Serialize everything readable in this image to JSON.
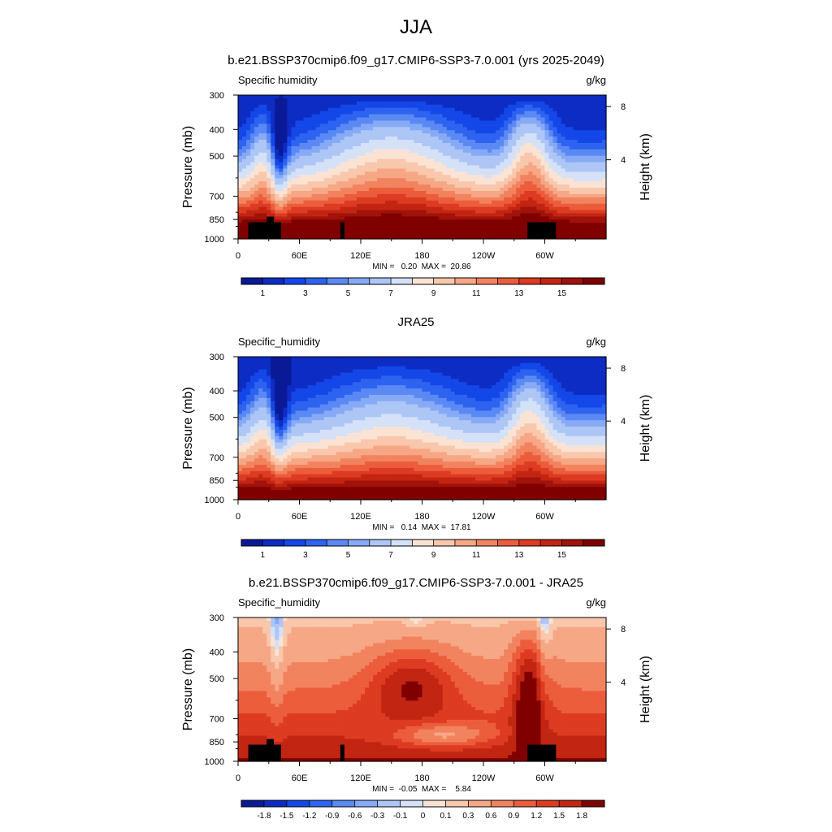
{
  "figure": {
    "title": "JJA"
  },
  "chart_data": [
    {
      "type": "heatmap",
      "title": "b.e21.BSSP370cmip6.f09_g17.CMIP6-SSP3-7.0.001 (yrs 2025-2049)",
      "variable": "Specific humidity",
      "units": "g/kg",
      "ylabel": "Pressure (mb)",
      "y2label": "Height (km)",
      "xticks": [
        "0",
        "60E",
        "120E",
        "180",
        "120W",
        "60W"
      ],
      "yticks": [
        300,
        400,
        500,
        700,
        850,
        1000
      ],
      "y2ticks": [
        8,
        4
      ],
      "ylim": [
        1000,
        300
      ],
      "xlim": [
        0,
        360
      ],
      "stats": "MIN =   0.20  MAX =  20.86",
      "colorbar_labels": [
        "1",
        "3",
        "5",
        "7",
        "9",
        "11",
        "13",
        "15"
      ],
      "colorbar_levels": [
        0.5,
        1,
        1.5,
        2,
        2.5,
        3,
        4,
        5,
        6,
        7,
        8,
        9,
        10,
        11,
        12,
        13,
        14,
        15,
        16
      ],
      "colormap": "BlueWhiteOrangeRed",
      "terrain_mask": true,
      "palette": [
        "#0a1a96",
        "#0d2cc4",
        "#1447e8",
        "#2e63f0",
        "#5b89f4",
        "#86aaf6",
        "#adc6f6",
        "#d4e1f7",
        "#fbe3d4",
        "#f9c7ac",
        "#f6a785",
        "#f2835f",
        "#ec5d3c",
        "#dd3b22",
        "#c22512",
        "#a0120a",
        "#800000"
      ]
    },
    {
      "type": "heatmap",
      "title": "JRA25",
      "variable": "Specific_humidity",
      "units": "g/kg",
      "ylabel": "Pressure (mb)",
      "y2label": "Height (km)",
      "xticks": [
        "0",
        "60E",
        "120E",
        "180",
        "120W",
        "60W"
      ],
      "yticks": [
        300,
        400,
        500,
        700,
        850,
        1000
      ],
      "y2ticks": [
        8,
        4
      ],
      "ylim": [
        1000,
        300
      ],
      "xlim": [
        0,
        360
      ],
      "stats": "MIN =   0.14  MAX =  17.81",
      "colorbar_labels": [
        "1",
        "3",
        "5",
        "7",
        "9",
        "11",
        "13",
        "15"
      ],
      "colorbar_levels": [
        0.5,
        1,
        1.5,
        2,
        2.5,
        3,
        4,
        5,
        6,
        7,
        8,
        9,
        10,
        11,
        12,
        13,
        14,
        15,
        16
      ],
      "colormap": "BlueWhiteOrangeRed",
      "terrain_mask": false,
      "palette": [
        "#0a1a96",
        "#0d2cc4",
        "#1447e8",
        "#2e63f0",
        "#5b89f4",
        "#86aaf6",
        "#adc6f6",
        "#d4e1f7",
        "#fbe3d4",
        "#f9c7ac",
        "#f6a785",
        "#f2835f",
        "#ec5d3c",
        "#dd3b22",
        "#c22512",
        "#a0120a",
        "#800000"
      ]
    },
    {
      "type": "heatmap",
      "title": "b.e21.BSSP370cmip6.f09_g17.CMIP6-SSP3-7.0.001 - JRA25",
      "variable": "Specific_humidity",
      "units": "g/kg",
      "ylabel": "Pressure (mb)",
      "y2label": "Height (km)",
      "xticks": [
        "0",
        "60E",
        "120E",
        "180",
        "120W",
        "60W"
      ],
      "yticks": [
        300,
        400,
        500,
        700,
        850,
        1000
      ],
      "y2ticks": [
        8,
        4
      ],
      "ylim": [
        1000,
        300
      ],
      "xlim": [
        0,
        360
      ],
      "stats": "MIN =  -0.05  MAX =    5.84",
      "colorbar_labels": [
        "-1.8",
        "-1.5",
        "-1.2",
        "-0.9",
        "-0.6",
        "-0.3",
        "-0.1",
        "0",
        "0.1",
        "0.3",
        "0.6",
        "0.9",
        "1.2",
        "1.5",
        "1.8"
      ],
      "colorbar_levels": [
        -1.8,
        -1.5,
        -1.2,
        -0.9,
        -0.6,
        -0.3,
        -0.1,
        0,
        0.1,
        0.3,
        0.6,
        0.9,
        1.2,
        1.5,
        1.8
      ],
      "colormap": "BlueWhiteOrangeRed",
      "terrain_mask": true,
      "palette": [
        "#0a1a96",
        "#0d2cc4",
        "#1447e8",
        "#2e63f0",
        "#5b89f4",
        "#86aaf6",
        "#adc6f6",
        "#d4e1f7",
        "#fbe3d4",
        "#f9c7ac",
        "#f6a785",
        "#f2835f",
        "#ec5d3c",
        "#dd3b22",
        "#c22512",
        "#800000"
      ]
    }
  ]
}
